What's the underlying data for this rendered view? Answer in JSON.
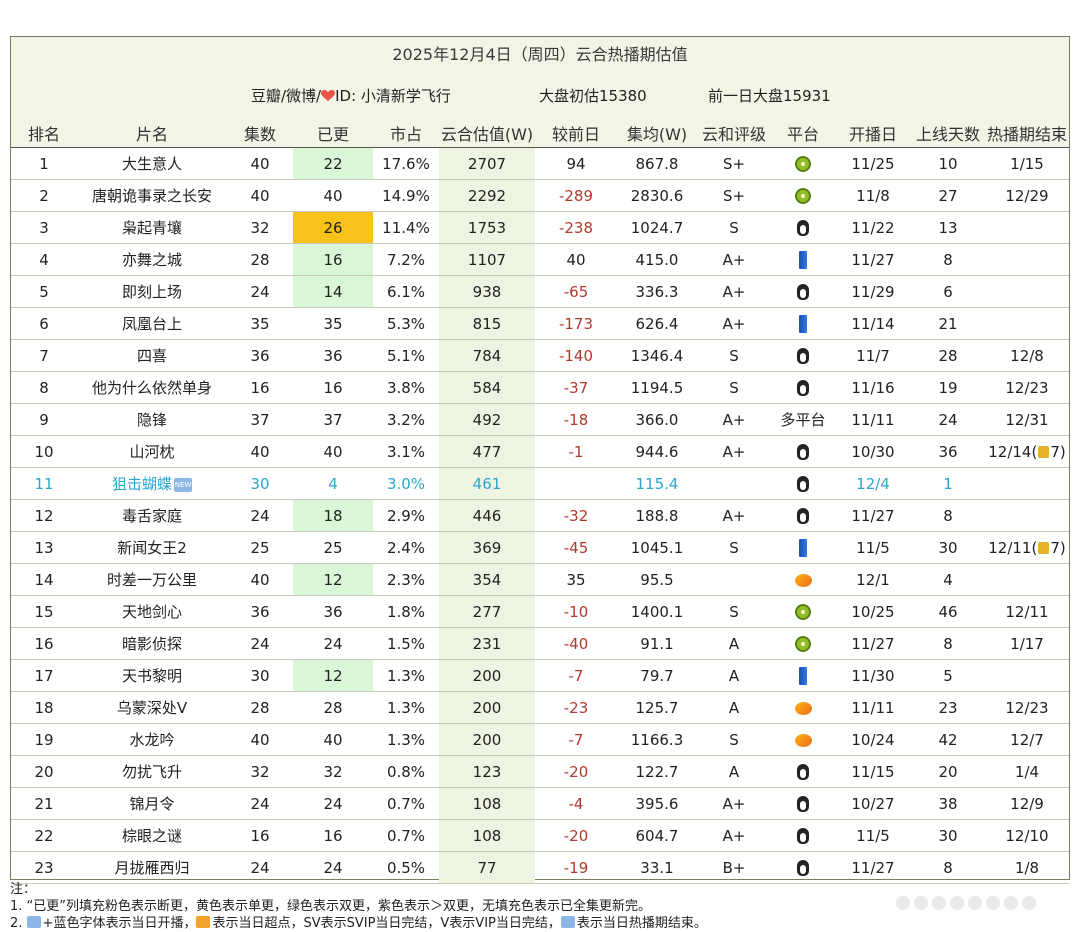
{
  "header": {
    "title": "2025年12月4日（周四）云合热播期估值",
    "source": "豆瓣/微博/",
    "source_id": "ID: 小清新学飞行",
    "initial_estimate": "大盘初估15380",
    "prev_day": "前一日大盘15931"
  },
  "columns": [
    "排名",
    "片名",
    "集数",
    "已更",
    "市占",
    "云合估值(W)",
    "较前日",
    "集均(W)",
    "云和评级",
    "平台",
    "开播日",
    "上线天数",
    "热播期结束"
  ],
  "platform_icons": {
    "kiwi": "iqiyi-kiwi-icon",
    "penguin": "tencent-penguin-icon",
    "bar": "youku-bar-icon",
    "mango": "mango-tv-icon"
  },
  "rows": [
    {
      "rank": "1",
      "name": "大生意人",
      "eps": "40",
      "updated": "22",
      "upd_color": "green",
      "share": "17.6%",
      "est": "2707",
      "delta": "94",
      "avg": "867.8",
      "rating": "S+",
      "platform": "kiwi",
      "start": "11/25",
      "days": "10",
      "end": "1/15"
    },
    {
      "rank": "2",
      "name": "唐朝诡事录之长安",
      "eps": "40",
      "updated": "40",
      "upd_color": "",
      "share": "14.9%",
      "est": "2292",
      "delta": "-289",
      "avg": "2830.6",
      "rating": "S+",
      "platform": "kiwi",
      "start": "11/8",
      "days": "27",
      "end": "12/29"
    },
    {
      "rank": "3",
      "name": "枭起青壤",
      "eps": "32",
      "updated": "26",
      "upd_color": "yellow",
      "share": "11.4%",
      "est": "1753",
      "delta": "-238",
      "avg": "1024.7",
      "rating": "S",
      "platform": "penguin",
      "start": "11/22",
      "days": "13",
      "end": ""
    },
    {
      "rank": "4",
      "name": "亦舞之城",
      "eps": "28",
      "updated": "16",
      "upd_color": "green",
      "share": "7.2%",
      "est": "1107",
      "delta": "40",
      "avg": "415.0",
      "rating": "A+",
      "platform": "bar",
      "start": "11/27",
      "days": "8",
      "end": ""
    },
    {
      "rank": "5",
      "name": "即刻上场",
      "eps": "24",
      "updated": "14",
      "upd_color": "green",
      "share": "6.1%",
      "est": "938",
      "delta": "-65",
      "avg": "336.3",
      "rating": "A+",
      "platform": "penguin",
      "start": "11/29",
      "days": "6",
      "end": ""
    },
    {
      "rank": "6",
      "name": "凤凰台上",
      "eps": "35",
      "updated": "35",
      "upd_color": "",
      "share": "5.3%",
      "est": "815",
      "delta": "-173",
      "avg": "626.4",
      "rating": "A+",
      "platform": "bar",
      "start": "11/14",
      "days": "21",
      "end": ""
    },
    {
      "rank": "7",
      "name": "四喜",
      "eps": "36",
      "updated": "36",
      "upd_color": "",
      "share": "5.1%",
      "est": "784",
      "delta": "-140",
      "avg": "1346.4",
      "rating": "S",
      "platform": "penguin",
      "start": "11/7",
      "days": "28",
      "end": "12/8"
    },
    {
      "rank": "8",
      "name": "他为什么依然单身",
      "eps": "16",
      "updated": "16",
      "upd_color": "",
      "share": "3.8%",
      "est": "584",
      "delta": "-37",
      "avg": "1194.5",
      "rating": "S",
      "platform": "penguin",
      "start": "11/16",
      "days": "19",
      "end": "12/23"
    },
    {
      "rank": "9",
      "name": "隐锋",
      "eps": "37",
      "updated": "37",
      "upd_color": "",
      "share": "3.2%",
      "est": "492",
      "delta": "-18",
      "avg": "366.0",
      "rating": "A+",
      "platform": "text",
      "platform_text": "多平台",
      "start": "11/11",
      "days": "24",
      "end": "12/31"
    },
    {
      "rank": "10",
      "name": "山河枕",
      "eps": "40",
      "updated": "40",
      "upd_color": "",
      "share": "3.1%",
      "est": "477",
      "delta": "-1",
      "avg": "944.6",
      "rating": "A+",
      "platform": "penguin",
      "start": "10/30",
      "days": "36",
      "end": "12/14(",
      "end_lock": true,
      "end_suffix": "7)"
    },
    {
      "rank": "11",
      "name": "狙击蝴蝶",
      "new": true,
      "new_label": "NEW",
      "eps": "30",
      "updated": "4",
      "upd_color": "",
      "share": "3.0%",
      "est": "461",
      "delta": "",
      "avg": "115.4",
      "rating": "",
      "platform": "penguin",
      "start": "12/4",
      "days": "1",
      "end": ""
    },
    {
      "rank": "12",
      "name": "毒舌家庭",
      "eps": "24",
      "updated": "18",
      "upd_color": "green",
      "share": "2.9%",
      "est": "446",
      "delta": "-32",
      "avg": "188.8",
      "rating": "A+",
      "platform": "penguin",
      "start": "11/27",
      "days": "8",
      "end": ""
    },
    {
      "rank": "13",
      "name": "新闻女王2",
      "eps": "25",
      "updated": "25",
      "upd_color": "",
      "share": "2.4%",
      "est": "369",
      "delta": "-45",
      "avg": "1045.1",
      "rating": "S",
      "platform": "bar",
      "start": "11/5",
      "days": "30",
      "end": "12/11(",
      "end_lock": true,
      "end_suffix": "7)"
    },
    {
      "rank": "14",
      "name": "时差一万公里",
      "eps": "40",
      "updated": "12",
      "upd_color": "green",
      "share": "2.3%",
      "est": "354",
      "delta": "35",
      "avg": "95.5",
      "rating": "",
      "platform": "mango",
      "start": "12/1",
      "days": "4",
      "end": ""
    },
    {
      "rank": "15",
      "name": "天地剑心",
      "eps": "36",
      "updated": "36",
      "upd_color": "",
      "share": "1.8%",
      "est": "277",
      "delta": "-10",
      "avg": "1400.1",
      "rating": "S",
      "platform": "kiwi",
      "start": "10/25",
      "days": "46",
      "end": "12/11"
    },
    {
      "rank": "16",
      "name": "暗影侦探",
      "eps": "24",
      "updated": "24",
      "upd_color": "",
      "share": "1.5%",
      "est": "231",
      "delta": "-40",
      "avg": "91.1",
      "rating": "A",
      "platform": "kiwi",
      "start": "11/27",
      "days": "8",
      "end": "1/17"
    },
    {
      "rank": "17",
      "name": "天书黎明",
      "eps": "30",
      "updated": "12",
      "upd_color": "green",
      "share": "1.3%",
      "est": "200",
      "delta": "-7",
      "avg": "79.7",
      "rating": "A",
      "platform": "bar",
      "start": "11/30",
      "days": "5",
      "end": ""
    },
    {
      "rank": "18",
      "name": "乌蒙深处V",
      "eps": "28",
      "updated": "28",
      "upd_color": "",
      "share": "1.3%",
      "est": "200",
      "delta": "-23",
      "avg": "125.7",
      "rating": "A",
      "platform": "mango",
      "start": "11/11",
      "days": "23",
      "end": "12/23"
    },
    {
      "rank": "19",
      "name": "水龙吟",
      "eps": "40",
      "updated": "40",
      "upd_color": "",
      "share": "1.3%",
      "est": "200",
      "delta": "-7",
      "avg": "1166.3",
      "rating": "S",
      "platform": "mango",
      "start": "10/24",
      "days": "42",
      "end": "12/7"
    },
    {
      "rank": "20",
      "name": "勿扰飞升",
      "eps": "32",
      "updated": "32",
      "upd_color": "",
      "share": "0.8%",
      "est": "123",
      "delta": "-20",
      "avg": "122.7",
      "rating": "A",
      "platform": "penguin",
      "start": "11/15",
      "days": "20",
      "end": "1/4"
    },
    {
      "rank": "21",
      "name": "锦月令",
      "eps": "24",
      "updated": "24",
      "upd_color": "",
      "share": "0.7%",
      "est": "108",
      "delta": "-4",
      "avg": "395.6",
      "rating": "A+",
      "platform": "penguin",
      "start": "10/27",
      "days": "38",
      "end": "12/9"
    },
    {
      "rank": "22",
      "name": "棕眼之谜",
      "eps": "16",
      "updated": "16",
      "upd_color": "",
      "share": "0.7%",
      "est": "108",
      "delta": "-20",
      "avg": "604.7",
      "rating": "A+",
      "platform": "penguin",
      "start": "11/5",
      "days": "30",
      "end": "12/10"
    },
    {
      "rank": "23",
      "name": "月拢雁西归",
      "eps": "24",
      "updated": "24",
      "upd_color": "",
      "share": "0.5%",
      "est": "77",
      "delta": "-19",
      "avg": "33.1",
      "rating": "B+",
      "platform": "penguin",
      "start": "11/27",
      "days": "8",
      "end": "1/8"
    }
  ],
  "notes": {
    "label": "注：",
    "line1": "1. “已更”列填充粉色表示断更，黄色表示单更，绿色表示双更，紫色表示＞双更，无填充色表示已全集更新完。",
    "line2a": "2.",
    "line2b": "+蓝色字体表示当日开播，",
    "line2c": "表示当日超点，SV表示SVIP当日完结，V表示VIP当日完结，",
    "line2d": "表示当日热播期结束。"
  },
  "colors": {
    "header_bg": "#f2f4e6",
    "green_fill": "#d9f6d6",
    "yellow_fill": "#f7c21a",
    "new_text": "#2aa6cf",
    "negative_text": "#b0392e",
    "estimate_fill": "#eef4e2"
  }
}
